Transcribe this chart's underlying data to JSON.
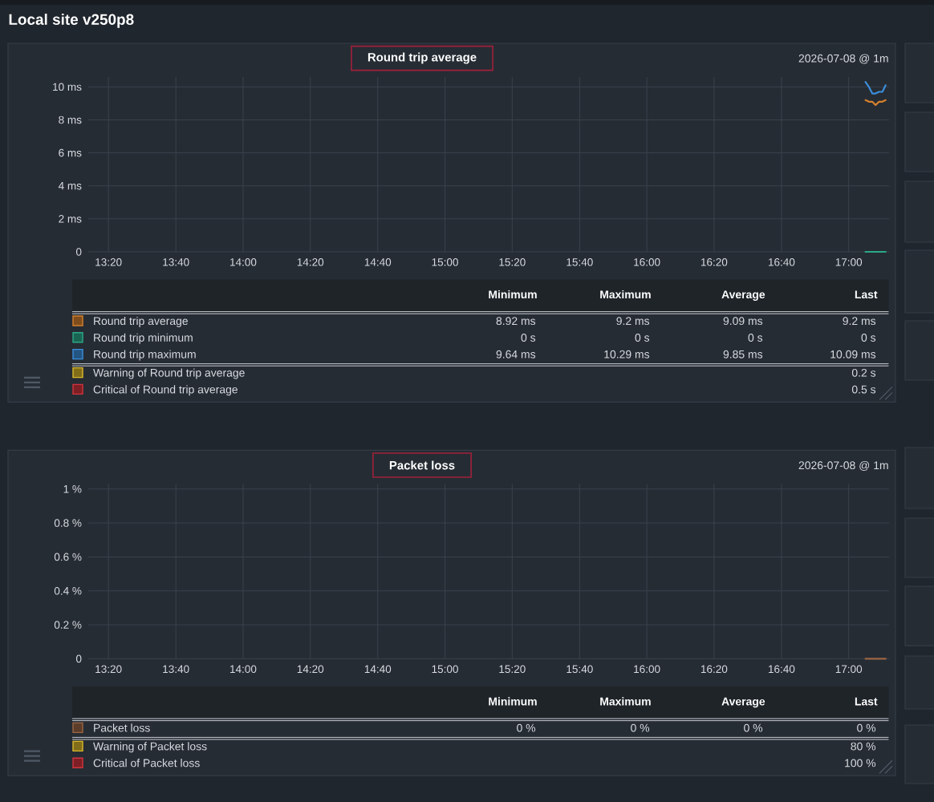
{
  "chart_data": [
    {
      "type": "line",
      "title": "Round trip average",
      "x": [
        17.083,
        17.1,
        17.117,
        17.133,
        17.15,
        17.167,
        17.183
      ],
      "series": [
        {
          "name": "Round trip average",
          "color": "#d4802e",
          "values": [
            9.2,
            9.1,
            9.1,
            8.9,
            9.1,
            9.1,
            9.2
          ]
        },
        {
          "name": "Round trip minimum",
          "color": "#2ba889",
          "values": [
            0,
            0,
            0,
            0,
            0,
            0,
            0
          ]
        },
        {
          "name": "Round trip maximum",
          "color": "#3b8edb",
          "values": [
            10.3,
            10.0,
            9.6,
            9.6,
            9.7,
            9.7,
            10.1
          ]
        },
        {
          "name": "Warning of Round trip average",
          "color": "#d9b82a",
          "values": [
            null,
            null,
            null,
            null,
            null,
            null,
            null
          ]
        },
        {
          "name": "Critical of Round trip average",
          "color": "#d0343e",
          "values": [
            null,
            null,
            null,
            null,
            null,
            null,
            null
          ]
        }
      ],
      "xlim": [
        13.233,
        17.2
      ],
      "xticks": [
        {
          "value": 13.333,
          "label": "13:20"
        },
        {
          "value": 13.667,
          "label": "13:40"
        },
        {
          "value": 14,
          "label": "14:00"
        },
        {
          "value": 14.333,
          "label": "14:20"
        },
        {
          "value": 14.667,
          "label": "14:40"
        },
        {
          "value": 15,
          "label": "15:00"
        },
        {
          "value": 15.333,
          "label": "15:20"
        },
        {
          "value": 15.667,
          "label": "15:40"
        },
        {
          "value": 16,
          "label": "16:00"
        },
        {
          "value": 16.333,
          "label": "16:20"
        },
        {
          "value": 16.667,
          "label": "16:40"
        },
        {
          "value": 17,
          "label": "17:00"
        }
      ],
      "ylim": [
        0,
        10.6
      ],
      "yticks": [
        0,
        {
          "value": 2,
          "label": "2 ms"
        },
        {
          "value": 4,
          "label": "4 ms"
        },
        {
          "value": 6,
          "label": "6 ms"
        },
        {
          "value": 8,
          "label": "8 ms"
        },
        {
          "value": 10,
          "label": "10 ms"
        }
      ],
      "grid": true,
      "legend": "bottom",
      "line_style": "solid",
      "annotations": [
        "Local site v250p8",
        "2026-07-08 @ 1m",
        "Minimum",
        "Maximum",
        "Average",
        "Last",
        "8.92 ms",
        "9.2 ms",
        "9.09 ms",
        "9.2 ms",
        "0 s",
        "0 s",
        "0 s",
        "0 s",
        "9.64 ms",
        "10.29 ms",
        "9.85 ms",
        "10.09 ms",
        "0.2 s",
        "0.5 s"
      ]
    },
    {
      "type": "line",
      "title": "Packet loss",
      "x": [
        17.083,
        17.1,
        17.117,
        17.133,
        17.15,
        17.167,
        17.183
      ],
      "series": [
        {
          "name": "Packet loss",
          "color": "#9a6644",
          "values": [
            0,
            0,
            0,
            0,
            0,
            0,
            0
          ]
        },
        {
          "name": "Warning of Packet loss",
          "color": "#d9b82a",
          "values": [
            null,
            null,
            null,
            null,
            null,
            null,
            null
          ]
        },
        {
          "name": "Critical of Packet loss",
          "color": "#d0343e",
          "values": [
            null,
            null,
            null,
            null,
            null,
            null,
            null
          ]
        }
      ],
      "xlim": [
        13.233,
        17.2
      ],
      "xticks": [
        {
          "value": 13.333,
          "label": "13:20"
        },
        {
          "value": 13.667,
          "label": "13:40"
        },
        {
          "value": 14,
          "label": "14:00"
        },
        {
          "value": 14.333,
          "label": "14:20"
        },
        {
          "value": 14.667,
          "label": "14:40"
        },
        {
          "value": 15,
          "label": "15:00"
        },
        {
          "value": 15.333,
          "label": "15:20"
        },
        {
          "value": 15.667,
          "label": "15:40"
        },
        {
          "value": 16,
          "label": "16:00"
        },
        {
          "value": 16.333,
          "label": "16:20"
        },
        {
          "value": 16.667,
          "label": "16:40"
        },
        {
          "value": 17,
          "label": "17:00"
        }
      ],
      "ylim": [
        0,
        1.03
      ],
      "yticks": [
        0,
        {
          "value": 0.2,
          "label": "0.2 %"
        },
        {
          "value": 0.4,
          "label": "0.4 %"
        },
        {
          "value": 0.6,
          "label": "0.6 %"
        },
        {
          "value": 0.8,
          "label": "0.8 %"
        },
        {
          "value": 1,
          "label": "1 %"
        }
      ],
      "grid": true,
      "legend": "bottom",
      "line_style": "solid",
      "annotations": [
        "2026-07-08 @ 1m",
        "Minimum",
        "Maximum",
        "Average",
        "Last",
        "0 %",
        "0 %",
        "0 %",
        "0 %",
        "80 %",
        "100 %"
      ]
    }
  ]
}
